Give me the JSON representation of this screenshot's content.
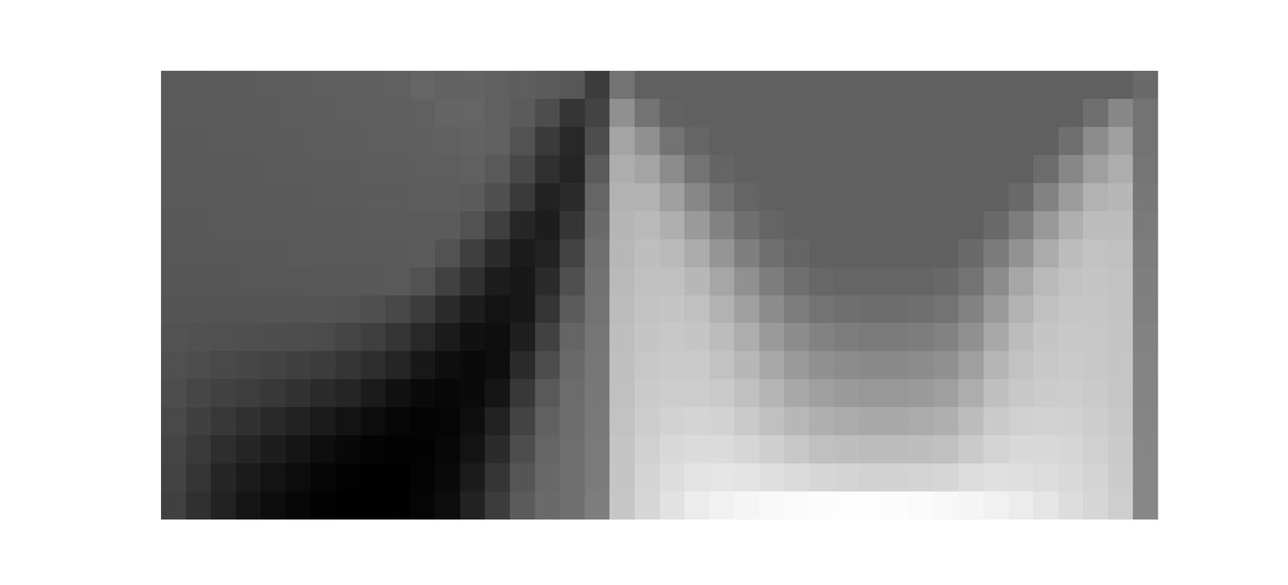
{
  "chart_data": {
    "type": "heatmap",
    "tick_labels": false,
    "color_range": [
      -1,
      1.65
    ],
    "cells": [
      [
        -0.05,
        -0.05,
        -0.04,
        -0.04,
        -0.03,
        -0.03,
        -0.02,
        -0.02,
        -0.01,
        0,
        0.05,
        0.02,
        0.03,
        0,
        -0.02,
        -0.05,
        -0.1,
        -0.38,
        0.2,
        0,
        0,
        0,
        0,
        0,
        0,
        0,
        0,
        0,
        0,
        0,
        0,
        0,
        0,
        0,
        0,
        0,
        0,
        0,
        0,
        0.1
      ],
      [
        -0.05,
        -0.05,
        -0.05,
        -0.04,
        -0.04,
        -0.03,
        -0.03,
        -0.02,
        -0.02,
        -0.01,
        0,
        0.04,
        0.05,
        0,
        -0.05,
        -0.2,
        -0.45,
        -0.3,
        0.5,
        0.2,
        0.02,
        0,
        0,
        0,
        0,
        0,
        0,
        0,
        0,
        0,
        0,
        0,
        0,
        0,
        0,
        0,
        0,
        0.15,
        0.4,
        0.2
      ],
      [
        -0.06,
        -0.06,
        -0.05,
        -0.05,
        -0.04,
        -0.04,
        -0.03,
        -0.03,
        -0.02,
        -0.02,
        -0.01,
        0,
        0.03,
        0,
        -0.15,
        -0.4,
        -0.58,
        -0.2,
        0.7,
        0.5,
        0.2,
        0.05,
        0,
        0,
        0,
        0,
        0,
        0,
        0,
        0,
        0,
        0,
        0,
        0,
        0,
        0,
        0.15,
        0.45,
        0.65,
        0.2
      ],
      [
        -0.07,
        -0.07,
        -0.06,
        -0.06,
        -0.05,
        -0.05,
        -0.04,
        -0.04,
        -0.03,
        -0.03,
        -0.02,
        -0.02,
        0,
        -0.08,
        -0.25,
        -0.5,
        -0.62,
        -0.05,
        0.8,
        0.7,
        0.45,
        0.2,
        0.05,
        0,
        0,
        0,
        0,
        0,
        0,
        0,
        0,
        0,
        0,
        0,
        0,
        0.12,
        0.4,
        0.65,
        0.8,
        0.22
      ],
      [
        -0.08,
        -0.08,
        -0.07,
        -0.07,
        -0.06,
        -0.06,
        -0.05,
        -0.05,
        -0.04,
        -0.04,
        -0.03,
        -0.03,
        -0.05,
        -0.18,
        -0.4,
        -0.65,
        -0.55,
        0.05,
        0.85,
        0.85,
        0.65,
        0.4,
        0.18,
        0.05,
        0,
        0,
        0,
        0,
        0,
        0,
        0,
        0,
        0,
        0,
        0.1,
        0.35,
        0.62,
        0.85,
        0.9,
        0.25
      ],
      [
        -0.09,
        -0.09,
        -0.08,
        -0.08,
        -0.07,
        -0.07,
        -0.06,
        -0.06,
        -0.05,
        -0.05,
        -0.05,
        -0.05,
        -0.15,
        -0.35,
        -0.6,
        -0.7,
        -0.45,
        0.1,
        0.88,
        0.92,
        0.82,
        0.6,
        0.35,
        0.15,
        0.05,
        0,
        0,
        0,
        0,
        0,
        0,
        0,
        0,
        0.1,
        0.3,
        0.58,
        0.82,
        0.95,
        0.95,
        0.27
      ],
      [
        -0.1,
        -0.1,
        -0.1,
        -0.09,
        -0.09,
        -0.08,
        -0.08,
        -0.07,
        -0.07,
        -0.06,
        -0.05,
        -0.15,
        -0.35,
        -0.55,
        -0.72,
        -0.65,
        -0.3,
        0.15,
        0.9,
        0.97,
        0.92,
        0.78,
        0.55,
        0.32,
        0.15,
        0.05,
        0,
        0,
        0,
        0,
        0,
        0,
        0.1,
        0.28,
        0.52,
        0.78,
        0.95,
        1.02,
        1.0,
        0.3
      ],
      [
        -0.11,
        -0.11,
        -0.11,
        -0.1,
        -0.1,
        -0.1,
        -0.09,
        -0.09,
        -0.09,
        -0.08,
        -0.15,
        -0.32,
        -0.5,
        -0.7,
        -0.75,
        -0.55,
        -0.18,
        0.18,
        0.92,
        1.0,
        1.0,
        0.9,
        0.72,
        0.5,
        0.3,
        0.15,
        0.07,
        0.05,
        0.05,
        0.05,
        0.05,
        0.08,
        0.2,
        0.45,
        0.72,
        0.92,
        1.02,
        1.05,
        1.02,
        0.32
      ],
      [
        -0.12,
        -0.13,
        -0.13,
        -0.13,
        -0.13,
        -0.13,
        -0.13,
        -0.14,
        -0.18,
        -0.25,
        -0.38,
        -0.55,
        -0.7,
        -0.8,
        -0.75,
        -0.45,
        -0.05,
        0.2,
        0.95,
        1.03,
        1.05,
        1.0,
        0.85,
        0.65,
        0.45,
        0.3,
        0.2,
        0.15,
        0.13,
        0.13,
        0.15,
        0.2,
        0.35,
        0.6,
        0.85,
        1.0,
        1.06,
        1.06,
        1.03,
        0.33
      ],
      [
        -0.14,
        -0.16,
        -0.17,
        -0.18,
        -0.19,
        -0.2,
        -0.22,
        -0.28,
        -0.35,
        -0.45,
        -0.58,
        -0.72,
        -0.82,
        -0.85,
        -0.68,
        -0.32,
        0.05,
        0.22,
        0.97,
        1.05,
        1.08,
        1.05,
        0.95,
        0.8,
        0.6,
        0.45,
        0.35,
        0.3,
        0.28,
        0.28,
        0.3,
        0.35,
        0.5,
        0.75,
        0.95,
        1.05,
        1.08,
        1.07,
        1.04,
        0.35
      ],
      [
        -0.17,
        -0.2,
        -0.24,
        -0.27,
        -0.3,
        -0.33,
        -0.38,
        -0.45,
        -0.52,
        -0.62,
        -0.75,
        -0.85,
        -0.9,
        -0.85,
        -0.55,
        -0.2,
        0.1,
        0.24,
        0.98,
        1.07,
        1.1,
        1.1,
        1.02,
        0.9,
        0.75,
        0.6,
        0.5,
        0.45,
        0.42,
        0.42,
        0.45,
        0.5,
        0.65,
        0.88,
        1.02,
        1.08,
        1.1,
        1.08,
        1.05,
        0.36
      ],
      [
        -0.2,
        -0.27,
        -0.32,
        -0.37,
        -0.42,
        -0.48,
        -0.55,
        -0.62,
        -0.72,
        -0.82,
        -0.9,
        -0.93,
        -0.9,
        -0.78,
        -0.42,
        -0.08,
        0.12,
        0.25,
        1.0,
        1.1,
        1.13,
        1.13,
        1.1,
        1.0,
        0.88,
        0.75,
        0.65,
        0.6,
        0.58,
        0.58,
        0.6,
        0.65,
        0.8,
        0.98,
        1.08,
        1.12,
        1.13,
        1.1,
        1.06,
        0.37
      ],
      [
        -0.24,
        -0.33,
        -0.42,
        -0.5,
        -0.57,
        -0.65,
        -0.72,
        -0.8,
        -0.88,
        -0.93,
        -0.96,
        -0.95,
        -0.85,
        -0.65,
        -0.3,
        0,
        0.13,
        0.26,
        1.02,
        1.13,
        1.18,
        1.2,
        1.18,
        1.1,
        1.0,
        0.9,
        0.82,
        0.78,
        0.75,
        0.75,
        0.78,
        0.82,
        0.95,
        1.1,
        1.16,
        1.18,
        1.17,
        1.13,
        1.08,
        0.38
      ],
      [
        -0.28,
        -0.4,
        -0.52,
        -0.62,
        -0.7,
        -0.78,
        -0.85,
        -0.92,
        -0.96,
        -0.98,
        -0.97,
        -0.93,
        -0.8,
        -0.55,
        -0.2,
        0.05,
        0.14,
        0.27,
        1.04,
        1.16,
        1.24,
        1.28,
        1.28,
        1.22,
        1.15,
        1.07,
        1.0,
        0.97,
        0.95,
        0.95,
        0.97,
        1.0,
        1.1,
        1.2,
        1.24,
        1.24,
        1.22,
        1.16,
        1.1,
        0.39
      ],
      [
        -0.3,
        -0.45,
        -0.6,
        -0.72,
        -0.8,
        -0.88,
        -0.94,
        -0.98,
        -1.0,
        -1.0,
        -0.96,
        -0.9,
        -0.72,
        -0.45,
        -0.12,
        0.08,
        0.15,
        0.28,
        1.05,
        1.2,
        1.3,
        1.36,
        1.38,
        1.36,
        1.32,
        1.27,
        1.22,
        1.2,
        1.18,
        1.18,
        1.2,
        1.22,
        1.3,
        1.33,
        1.32,
        1.3,
        1.26,
        1.2,
        1.12,
        0.4
      ],
      [
        -0.33,
        -0.5,
        -0.65,
        -0.78,
        -0.86,
        -0.93,
        -0.98,
        -1.0,
        -1.0,
        -0.99,
        -0.95,
        -0.86,
        -0.65,
        -0.38,
        -0.05,
        0.1,
        0.15,
        0.3,
        1.06,
        1.22,
        1.35,
        1.45,
        1.5,
        1.55,
        1.58,
        1.6,
        1.62,
        1.63,
        1.63,
        1.62,
        1.6,
        1.58,
        1.55,
        1.5,
        1.45,
        1.38,
        1.3,
        1.22,
        1.14,
        0.4
      ]
    ]
  }
}
